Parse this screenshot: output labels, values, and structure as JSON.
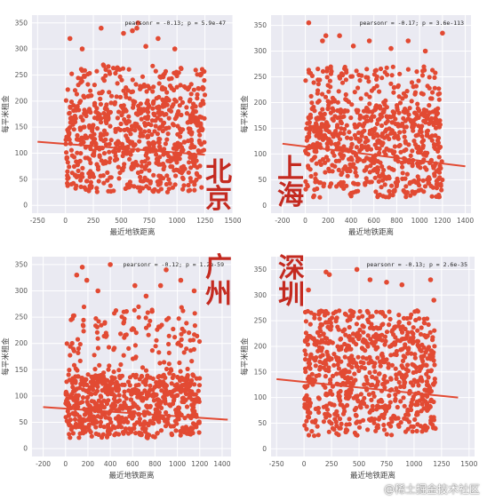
{
  "panels": [
    {
      "city": "北京",
      "annotation": "pearsonr = -0.13; p = 5.9e-47"
    },
    {
      "city": "上海",
      "annotation": "pearsonr = -0.17; p = 3.6e-113"
    },
    {
      "city": "广州",
      "annotation": "pearsonr = -0.12; p = 1.2e-59"
    },
    {
      "city": "深圳",
      "annotation": "pearsonr = -0.13; p = 2.6e-35"
    }
  ],
  "watermark": "@稀土掘金技术社区",
  "colors": {
    "plot_bg": "#eaeaf2",
    "grid": "#ffffff",
    "points": "#e24a33",
    "city_text": "#c42a20"
  },
  "chart_data": [
    {
      "type": "scatter",
      "xlabel": "最近地铁距离",
      "ylabel": "每平米租金",
      "xlim": [
        -300,
        1500
      ],
      "ylim": [
        -15,
        365
      ],
      "xticks": [
        -250,
        0,
        250,
        500,
        750,
        1000,
        1250,
        1500
      ],
      "yticks": [
        0,
        50,
        100,
        150,
        200,
        250,
        300,
        350
      ],
      "x_range": [
        0,
        1250
      ],
      "dense_band": [
        25,
        200
      ],
      "regression": {
        "x": [
          -250,
          1250
        ],
        "y": [
          122,
          97
        ]
      },
      "outliers": [
        [
          320,
          340
        ],
        [
          520,
          330
        ],
        [
          640,
          340
        ],
        [
          650,
          350
        ],
        [
          830,
          320
        ],
        [
          980,
          300
        ],
        [
          40,
          320
        ],
        [
          1210,
          250
        ],
        [
          720,
          305
        ],
        [
          150,
          300
        ],
        [
          600,
          335
        ]
      ]
    },
    {
      "type": "scatter",
      "xlabel": "最近地铁距离",
      "ylabel": "每平米租金",
      "xlim": [
        -300,
        1450
      ],
      "ylim": [
        -15,
        370
      ],
      "xticks": [
        -200,
        0,
        200,
        400,
        600,
        800,
        1000,
        1200,
        1400
      ],
      "yticks": [
        0,
        50,
        100,
        150,
        200,
        250,
        300,
        350
      ],
      "x_range": [
        0,
        1200
      ],
      "dense_band": [
        15,
        190
      ],
      "regression": {
        "x": [
          -200,
          1400
        ],
        "y": [
          120,
          76
        ]
      },
      "outliers": [
        [
          30,
          355
        ],
        [
          150,
          320
        ],
        [
          180,
          330
        ],
        [
          300,
          330
        ],
        [
          560,
          320
        ],
        [
          900,
          320
        ],
        [
          1200,
          335
        ],
        [
          750,
          305
        ],
        [
          1050,
          300
        ],
        [
          420,
          310
        ]
      ]
    },
    {
      "type": "scatter",
      "xlabel": "最近地铁距离",
      "ylabel": "每平米租金",
      "xlim": [
        -300,
        1480
      ],
      "ylim": [
        -15,
        365
      ],
      "xticks": [
        -200,
        0,
        200,
        400,
        600,
        800,
        1000,
        1200,
        1400
      ],
      "yticks": [
        0,
        50,
        100,
        150,
        200,
        250,
        300,
        350
      ],
      "x_range": [
        0,
        1200
      ],
      "dense_band": [
        20,
        140
      ],
      "regression": {
        "x": [
          -200,
          1450
        ],
        "y": [
          79,
          55
        ]
      },
      "outliers": [
        [
          100,
          330
        ],
        [
          150,
          345
        ],
        [
          190,
          320
        ],
        [
          400,
          350
        ],
        [
          620,
          310
        ],
        [
          850,
          310
        ],
        [
          1030,
          320
        ],
        [
          1150,
          300
        ],
        [
          900,
          340
        ],
        [
          290,
          300
        ],
        [
          720,
          290
        ]
      ]
    },
    {
      "type": "scatter",
      "xlabel": "最近地铁距离",
      "ylabel": "每平米租金",
      "xlim": [
        -300,
        1550
      ],
      "ylim": [
        -15,
        375
      ],
      "xticks": [
        -250,
        0,
        250,
        500,
        750,
        1000,
        1250,
        1500
      ],
      "yticks": [
        0,
        50,
        100,
        150,
        200,
        250,
        300,
        350
      ],
      "x_range": [
        0,
        1200
      ],
      "dense_band": [
        25,
        220
      ],
      "regression": {
        "x": [
          -250,
          1400
        ],
        "y": [
          136,
          100
        ]
      },
      "outliers": [
        [
          200,
          345
        ],
        [
          230,
          340
        ],
        [
          480,
          350
        ],
        [
          600,
          330
        ],
        [
          890,
          320
        ],
        [
          1150,
          330
        ],
        [
          1180,
          290
        ],
        [
          40,
          310
        ],
        [
          750,
          325
        ]
      ]
    }
  ]
}
